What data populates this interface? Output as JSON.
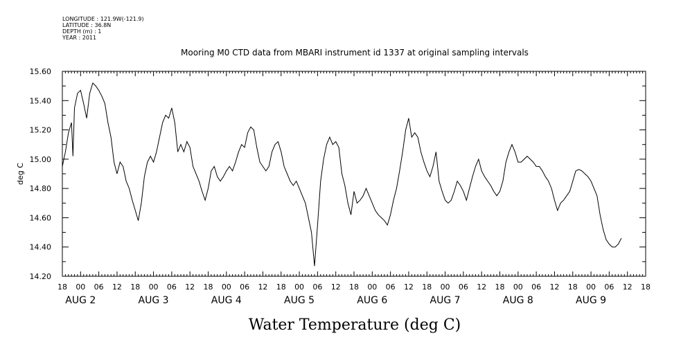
{
  "header": {
    "lines": [
      "LONGITUDE : 121.9W(-121.9)",
      "LATITUDE : 36.8N",
      "DEPTH (m) : 1",
      "YEAR : 2011"
    ]
  },
  "chart_data": {
    "type": "line",
    "title": "Mooring M0 CTD data from MBARI instrument id 1337 at original sampling intervals",
    "xlabel": "Water Temperature (deg C)",
    "ylabel": "deg C",
    "ylim": [
      14.2,
      15.6
    ],
    "yticks": [
      "14.20",
      "14.40",
      "14.60",
      "14.80",
      "15.00",
      "15.20",
      "15.40",
      "15.60"
    ],
    "x_unit": "hours since AUG 1 18:00",
    "xlim": [
      0,
      192
    ],
    "hour_labels": [
      "18",
      "00",
      "06",
      "12",
      "18",
      "00",
      "06",
      "12",
      "18",
      "00",
      "06",
      "12",
      "18",
      "00",
      "06",
      "12",
      "18",
      "00",
      "06",
      "12",
      "18",
      "00",
      "06",
      "12",
      "18",
      "00",
      "06",
      "12",
      "18",
      "00",
      "06",
      "12",
      "18"
    ],
    "day_labels": [
      "AUG 2",
      "AUG 3",
      "AUG 4",
      "AUG 5",
      "AUG 6",
      "AUG 7",
      "AUG 8",
      "AUG 9"
    ],
    "grid": false,
    "series": [
      {
        "values": [
          [
            0,
            14.95
          ],
          [
            1,
            15.05
          ],
          [
            2,
            15.18
          ],
          [
            3,
            15.25
          ],
          [
            3.5,
            15.02
          ],
          [
            4,
            15.35
          ],
          [
            5,
            15.45
          ],
          [
            6,
            15.47
          ],
          [
            7,
            15.38
          ],
          [
            8,
            15.28
          ],
          [
            9,
            15.45
          ],
          [
            10,
            15.52
          ],
          [
            11,
            15.5
          ],
          [
            12,
            15.47
          ],
          [
            13,
            15.43
          ],
          [
            14,
            15.38
          ],
          [
            15,
            15.25
          ],
          [
            16,
            15.15
          ],
          [
            17,
            14.98
          ],
          [
            18,
            14.9
          ],
          [
            19,
            14.98
          ],
          [
            20,
            14.95
          ],
          [
            21,
            14.85
          ],
          [
            22,
            14.8
          ],
          [
            23,
            14.72
          ],
          [
            24,
            14.65
          ],
          [
            25,
            14.58
          ],
          [
            26,
            14.7
          ],
          [
            27,
            14.88
          ],
          [
            28,
            14.98
          ],
          [
            29,
            15.02
          ],
          [
            30,
            14.98
          ],
          [
            31,
            15.05
          ],
          [
            32,
            15.15
          ],
          [
            33,
            15.25
          ],
          [
            34,
            15.3
          ],
          [
            35,
            15.28
          ],
          [
            36,
            15.35
          ],
          [
            37,
            15.25
          ],
          [
            38,
            15.05
          ],
          [
            39,
            15.1
          ],
          [
            40,
            15.05
          ],
          [
            41,
            15.12
          ],
          [
            42,
            15.08
          ],
          [
            43,
            14.95
          ],
          [
            44,
            14.9
          ],
          [
            45,
            14.85
          ],
          [
            46,
            14.78
          ],
          [
            47,
            14.72
          ],
          [
            48,
            14.8
          ],
          [
            49,
            14.92
          ],
          [
            50,
            14.95
          ],
          [
            51,
            14.88
          ],
          [
            52,
            14.85
          ],
          [
            53,
            14.88
          ],
          [
            54,
            14.92
          ],
          [
            55,
            14.95
          ],
          [
            56,
            14.92
          ],
          [
            57,
            14.98
          ],
          [
            58,
            15.05
          ],
          [
            59,
            15.1
          ],
          [
            60,
            15.08
          ],
          [
            61,
            15.18
          ],
          [
            62,
            15.22
          ],
          [
            63,
            15.2
          ],
          [
            64,
            15.08
          ],
          [
            65,
            14.98
          ],
          [
            66,
            14.95
          ],
          [
            67,
            14.92
          ],
          [
            68,
            14.95
          ],
          [
            69,
            15.05
          ],
          [
            70,
            15.1
          ],
          [
            71,
            15.12
          ],
          [
            72,
            15.05
          ],
          [
            73,
            14.95
          ],
          [
            74,
            14.9
          ],
          [
            75,
            14.85
          ],
          [
            76,
            14.82
          ],
          [
            77,
            14.85
          ],
          [
            78,
            14.8
          ],
          [
            79,
            14.75
          ],
          [
            80,
            14.7
          ],
          [
            81,
            14.6
          ],
          [
            82,
            14.5
          ],
          [
            83,
            14.27
          ],
          [
            84,
            14.55
          ],
          [
            85,
            14.85
          ],
          [
            86,
            15.0
          ],
          [
            87,
            15.1
          ],
          [
            88,
            15.15
          ],
          [
            89,
            15.1
          ],
          [
            90,
            15.12
          ],
          [
            91,
            15.08
          ],
          [
            92,
            14.9
          ],
          [
            93,
            14.82
          ],
          [
            94,
            14.7
          ],
          [
            95,
            14.62
          ],
          [
            96,
            14.78
          ],
          [
            97,
            14.7
          ],
          [
            98,
            14.72
          ],
          [
            99,
            14.75
          ],
          [
            100,
            14.8
          ],
          [
            101,
            14.75
          ],
          [
            102,
            14.7
          ],
          [
            103,
            14.65
          ],
          [
            104,
            14.62
          ],
          [
            105,
            14.6
          ],
          [
            106,
            14.58
          ],
          [
            107,
            14.55
          ],
          [
            108,
            14.62
          ],
          [
            109,
            14.72
          ],
          [
            110,
            14.8
          ],
          [
            111,
            14.92
          ],
          [
            112,
            15.05
          ],
          [
            113,
            15.2
          ],
          [
            114,
            15.28
          ],
          [
            115,
            15.15
          ],
          [
            116,
            15.18
          ],
          [
            117,
            15.15
          ],
          [
            118,
            15.05
          ],
          [
            119,
            14.98
          ],
          [
            120,
            14.92
          ],
          [
            121,
            14.88
          ],
          [
            122,
            14.95
          ],
          [
            123,
            15.05
          ],
          [
            124,
            14.85
          ],
          [
            125,
            14.78
          ],
          [
            126,
            14.72
          ],
          [
            127,
            14.7
          ],
          [
            128,
            14.72
          ],
          [
            129,
            14.78
          ],
          [
            130,
            14.85
          ],
          [
            131,
            14.82
          ],
          [
            132,
            14.78
          ],
          [
            133,
            14.72
          ],
          [
            134,
            14.8
          ],
          [
            135,
            14.88
          ],
          [
            136,
            14.95
          ],
          [
            137,
            15.0
          ],
          [
            138,
            14.92
          ],
          [
            139,
            14.88
          ],
          [
            140,
            14.85
          ],
          [
            141,
            14.82
          ],
          [
            142,
            14.78
          ],
          [
            143,
            14.75
          ],
          [
            144,
            14.78
          ],
          [
            145,
            14.85
          ],
          [
            146,
            14.98
          ],
          [
            147,
            15.05
          ],
          [
            148,
            15.1
          ],
          [
            149,
            15.05
          ],
          [
            150,
            14.98
          ],
          [
            151,
            14.98
          ],
          [
            152,
            15.0
          ],
          [
            153,
            15.02
          ],
          [
            154,
            15.0
          ],
          [
            155,
            14.98
          ],
          [
            156,
            14.95
          ],
          [
            157,
            14.95
          ],
          [
            158,
            14.92
          ],
          [
            159,
            14.88
          ],
          [
            160,
            14.85
          ],
          [
            161,
            14.8
          ],
          [
            162,
            14.72
          ],
          [
            163,
            14.65
          ],
          [
            164,
            14.7
          ],
          [
            165,
            14.72
          ],
          [
            166,
            14.75
          ],
          [
            167,
            14.78
          ],
          [
            168,
            14.85
          ],
          [
            169,
            14.92
          ],
          [
            170,
            14.93
          ],
          [
            171,
            14.92
          ],
          [
            172,
            14.9
          ],
          [
            173,
            14.88
          ],
          [
            174,
            14.85
          ],
          [
            175,
            14.8
          ],
          [
            176,
            14.75
          ],
          [
            177,
            14.62
          ],
          [
            178,
            14.52
          ],
          [
            179,
            14.45
          ],
          [
            180,
            14.42
          ],
          [
            181,
            14.4
          ],
          [
            182,
            14.4
          ],
          [
            183,
            14.42
          ],
          [
            184,
            14.46
          ]
        ]
      }
    ]
  }
}
